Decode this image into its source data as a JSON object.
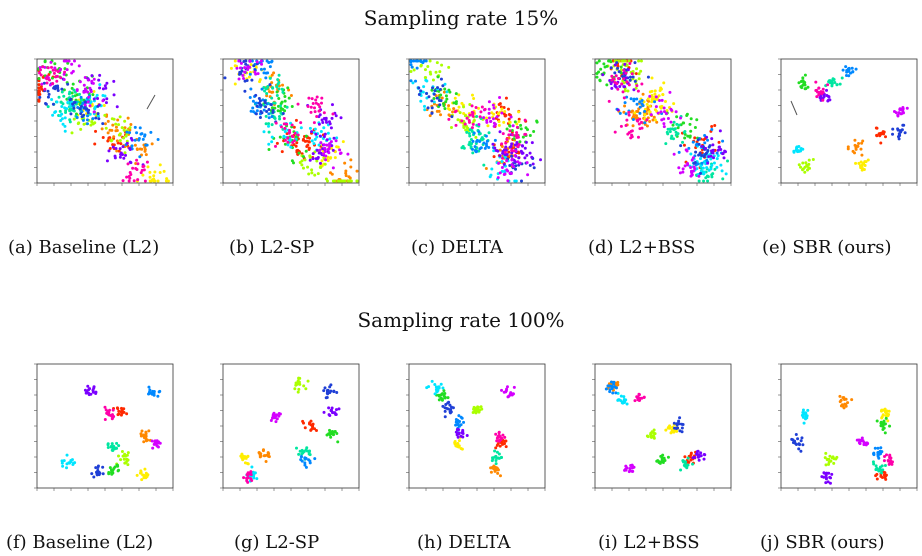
{
  "figure": {
    "rows": [
      {
        "title": "Sampling rate 15%",
        "panels": [
          {
            "caption": "(a) Baseline (L2)",
            "style": "spread",
            "arrow": "right"
          },
          {
            "caption": "(b) L2-SP",
            "style": "spread",
            "arrow": ""
          },
          {
            "caption": "(c) DELTA",
            "style": "spread",
            "arrow": ""
          },
          {
            "caption": "(d) L2+BSS",
            "style": "spread",
            "arrow": ""
          },
          {
            "caption": "(e) SBR (ours)",
            "style": "sparse",
            "arrow": "left"
          }
        ]
      },
      {
        "title": "Sampling rate 100%",
        "panels": [
          {
            "caption": "(f) Baseline (L2)",
            "style": "tight",
            "arrow": ""
          },
          {
            "caption": "(g) L2-SP",
            "style": "tight",
            "arrow": ""
          },
          {
            "caption": "(h) DELTA",
            "style": "tight",
            "arrow": ""
          },
          {
            "caption": "(i) L2+BSS",
            "style": "tight",
            "arrow": ""
          },
          {
            "caption": "(j) SBR (ours)",
            "style": "tight",
            "arrow": ""
          }
        ]
      }
    ],
    "cluster_colors": [
      "#ff2a00",
      "#ff8800",
      "#ffee00",
      "#aaff00",
      "#22dd22",
      "#00e6a0",
      "#00e5ff",
      "#0088ff",
      "#1f3fd6",
      "#7a00ff",
      "#d400ff",
      "#ff00aa"
    ]
  }
}
